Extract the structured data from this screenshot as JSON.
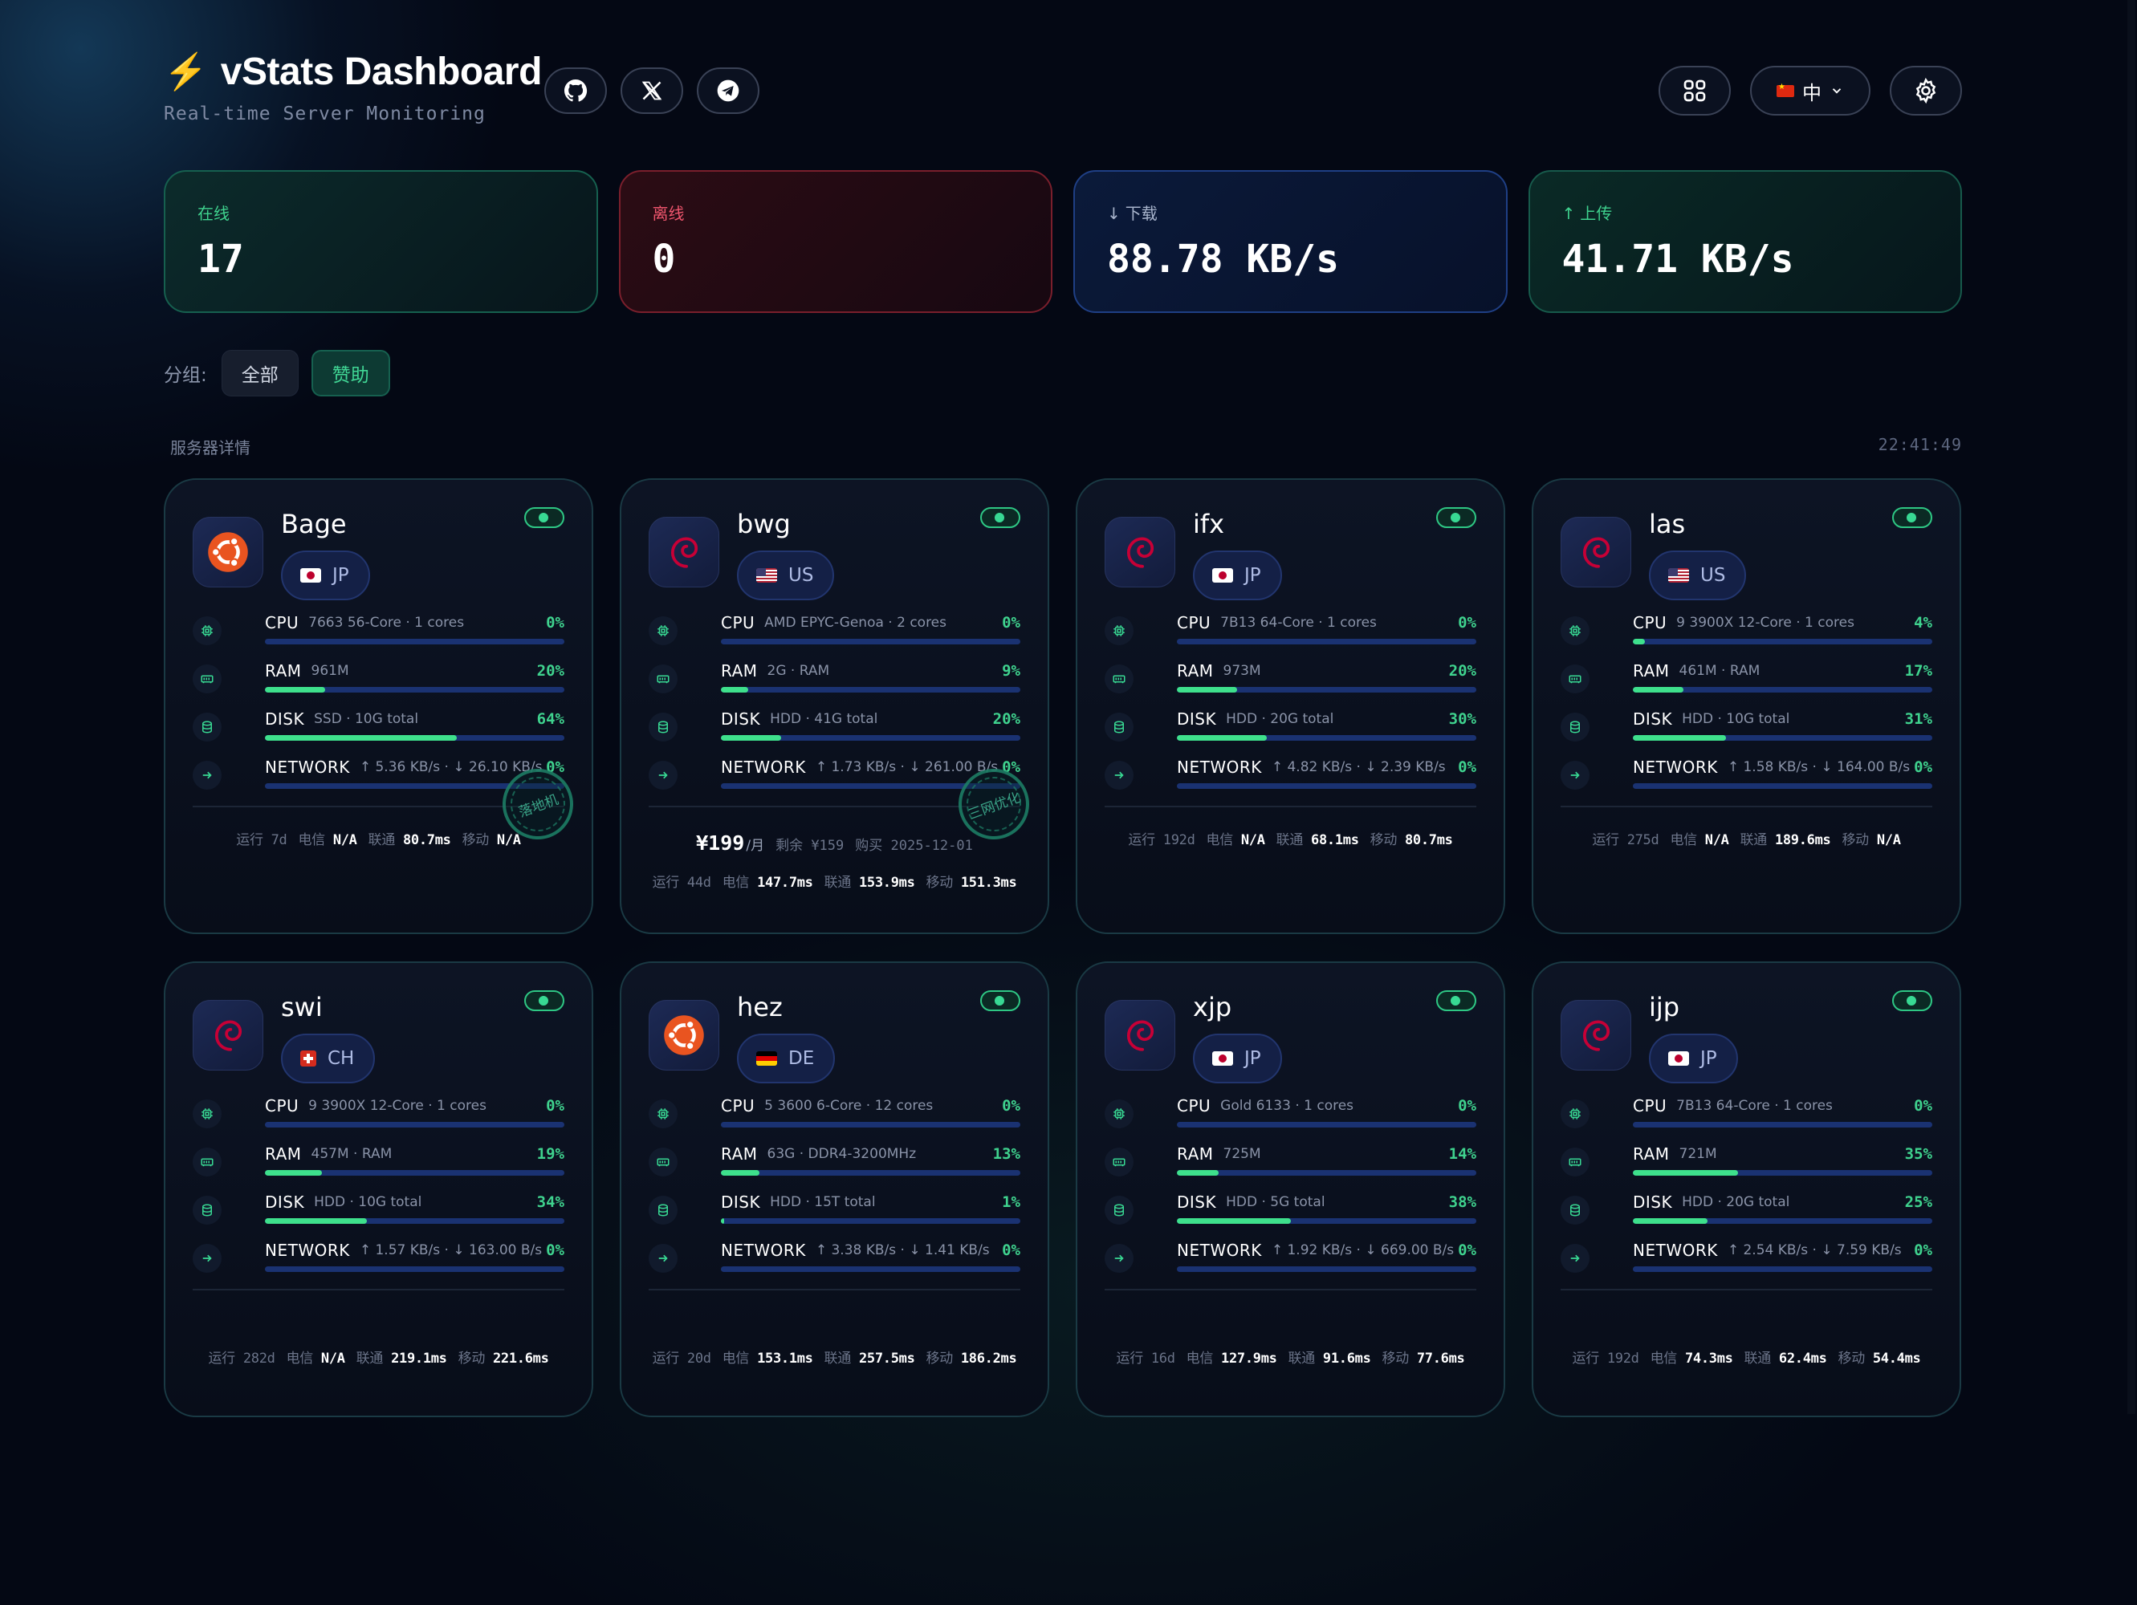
{
  "header": {
    "title": "vStats Dashboard",
    "subtitle": "Real-time Server Monitoring",
    "lang_label": "中"
  },
  "stats": {
    "online_label": "在线",
    "online_value": "17",
    "offline_label": "离线",
    "offline_value": "0",
    "download_label": "下载",
    "download_value": "88.78 KB/s",
    "upload_label": "上传",
    "upload_value": "41.71 KB/s"
  },
  "groups": {
    "label": "分组:",
    "all": "全部",
    "sponsor": "赞助"
  },
  "section": {
    "title": "服务器详情",
    "clock": "22:41:49"
  },
  "footer_labels": {
    "uptime": "运行",
    "telecom": "电信",
    "unicom": "联通",
    "mobile": "移动"
  },
  "metric_labels": {
    "cpu": "CPU",
    "ram": "RAM",
    "disk": "DISK",
    "network": "NETWORK"
  },
  "servers": [
    {
      "name": "Bage",
      "region": "JP",
      "os": "ubuntu",
      "cpu_detail": "7663 56-Core · 1 cores",
      "cpu_pct": "0%",
      "cpu": 0,
      "ram_detail": "961M",
      "ram_pct": "20%",
      "ram": 20,
      "disk_detail": "SSD · 10G total",
      "disk_pct": "64%",
      "disk": 64,
      "net_detail": "↑ 5.36 KB/s · ↓ 26.10 KB/s",
      "net_pct": "0%",
      "net": 0,
      "stamp": "落地机",
      "uptime": "7d",
      "telecom": "N/A",
      "unicom": "80.7ms",
      "mobile": "N/A"
    },
    {
      "name": "bwg",
      "region": "US",
      "os": "debian",
      "cpu_detail": "AMD EPYC-Genoa · 2 cores",
      "cpu_pct": "0%",
      "cpu": 0,
      "ram_detail": "2G · RAM",
      "ram_pct": "9%",
      "ram": 9,
      "disk_detail": "HDD · 41G total",
      "disk_pct": "20%",
      "disk": 20,
      "net_detail": "↑ 1.73 KB/s · ↓ 261.00 B/s",
      "net_pct": "0%",
      "net": 0,
      "stamp": "三网优化",
      "price": "¥199",
      "price_unit": "/月",
      "remaining": "剩余 ¥159",
      "purchase": "购买 2025-12-01",
      "uptime": "44d",
      "telecom": "147.7ms",
      "unicom": "153.9ms",
      "mobile": "151.3ms"
    },
    {
      "name": "ifx",
      "region": "JP",
      "os": "debian",
      "cpu_detail": "7B13 64-Core · 1 cores",
      "cpu_pct": "0%",
      "cpu": 0,
      "ram_detail": "973M",
      "ram_pct": "20%",
      "ram": 20,
      "disk_detail": "HDD · 20G total",
      "disk_pct": "30%",
      "disk": 30,
      "net_detail": "↑ 4.82 KB/s · ↓ 2.39 KB/s",
      "net_pct": "0%",
      "net": 0,
      "uptime": "192d",
      "telecom": "N/A",
      "unicom": "68.1ms",
      "mobile": "80.7ms"
    },
    {
      "name": "las",
      "region": "US",
      "os": "debian",
      "cpu_detail": "9 3900X 12-Core · 1 cores",
      "cpu_pct": "4%",
      "cpu": 4,
      "ram_detail": "461M · RAM",
      "ram_pct": "17%",
      "ram": 17,
      "disk_detail": "HDD · 10G total",
      "disk_pct": "31%",
      "disk": 31,
      "net_detail": "↑ 1.58 KB/s · ↓ 164.00 B/s",
      "net_pct": "0%",
      "net": 0,
      "uptime": "275d",
      "telecom": "N/A",
      "unicom": "189.6ms",
      "mobile": "N/A"
    },
    {
      "name": "swi",
      "region": "CH",
      "os": "debian",
      "cpu_detail": "9 3900X 12-Core · 1 cores",
      "cpu_pct": "0%",
      "cpu": 0,
      "ram_detail": "457M · RAM",
      "ram_pct": "19%",
      "ram": 19,
      "disk_detail": "HDD · 10G total",
      "disk_pct": "34%",
      "disk": 34,
      "net_detail": "↑ 1.57 KB/s · ↓ 163.00 B/s",
      "net_pct": "0%",
      "net": 0,
      "uptime": "282d",
      "telecom": "N/A",
      "unicom": "219.1ms",
      "mobile": "221.6ms"
    },
    {
      "name": "hez",
      "region": "DE",
      "os": "ubuntu",
      "cpu_detail": "5 3600 6-Core · 12 cores",
      "cpu_pct": "0%",
      "cpu": 0,
      "ram_detail": "63G · DDR4-3200MHz",
      "ram_pct": "13%",
      "ram": 13,
      "disk_detail": "HDD · 15T total",
      "disk_pct": "1%",
      "disk": 1,
      "net_detail": "↑ 3.38 KB/s · ↓ 1.41 KB/s",
      "net_pct": "0%",
      "net": 0,
      "uptime": "20d",
      "telecom": "153.1ms",
      "unicom": "257.5ms",
      "mobile": "186.2ms"
    },
    {
      "name": "xjp",
      "region": "JP",
      "os": "debian",
      "cpu_detail": "Gold 6133 · 1 cores",
      "cpu_pct": "0%",
      "cpu": 0,
      "ram_detail": "725M",
      "ram_pct": "14%",
      "ram": 14,
      "disk_detail": "HDD · 5G total",
      "disk_pct": "38%",
      "disk": 38,
      "net_detail": "↑ 1.92 KB/s · ↓ 669.00 B/s",
      "net_pct": "0%",
      "net": 0,
      "uptime": "16d",
      "telecom": "127.9ms",
      "unicom": "91.6ms",
      "mobile": "77.6ms"
    },
    {
      "name": "ijp",
      "region": "JP",
      "os": "debian",
      "cpu_detail": "7B13 64-Core · 1 cores",
      "cpu_pct": "0%",
      "cpu": 0,
      "ram_detail": "721M",
      "ram_pct": "35%",
      "ram": 35,
      "disk_detail": "HDD · 20G total",
      "disk_pct": "25%",
      "disk": 25,
      "net_detail": "↑ 2.54 KB/s · ↓ 7.59 KB/s",
      "net_pct": "0%",
      "net": 0,
      "uptime": "192d",
      "telecom": "74.3ms",
      "unicom": "62.4ms",
      "mobile": "54.4ms"
    }
  ],
  "colors": {
    "accent_green": "#3fd28e",
    "offline_red": "#f0566e",
    "bar_track": "#1a3272",
    "bar_fill": "#3ee08c"
  },
  "icons": [
    "bolt-icon",
    "github-icon",
    "x-icon",
    "telegram-icon",
    "grid-icon",
    "chevron-down-icon",
    "settings-icon",
    "cpu-icon",
    "ram-icon",
    "disk-icon",
    "network-icon",
    "ubuntu-icon",
    "debian-icon"
  ]
}
